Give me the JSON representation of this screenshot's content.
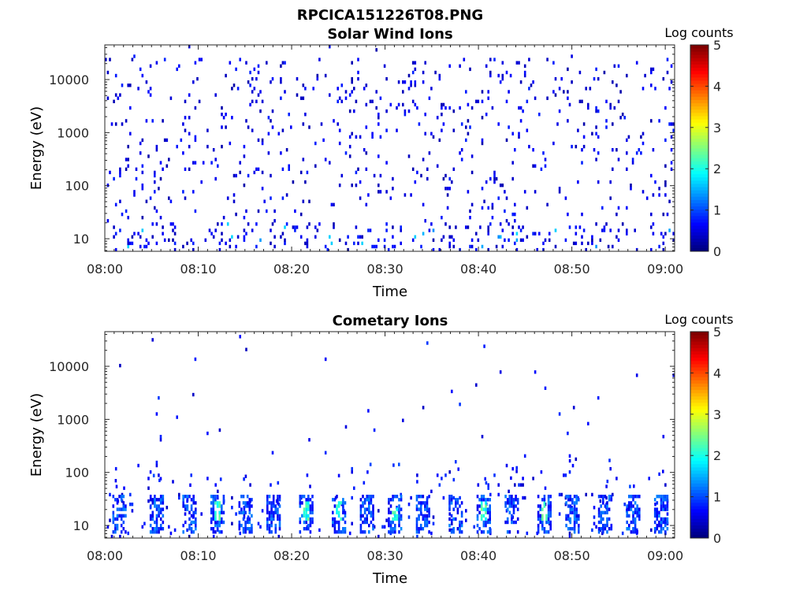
{
  "figure": {
    "title": "RPCICA151226T08.PNG"
  },
  "colors": {
    "axis": "#262626",
    "background": "#ffffff"
  },
  "chart_data": [
    {
      "type": "heatmap",
      "title": "Solar Wind Ions",
      "xlabel": "Time",
      "ylabel": "Energy (eV)",
      "x_ticks": [
        "08:00",
        "08:10",
        "08:20",
        "08:30",
        "08:40",
        "08:50",
        "09:00"
      ],
      "xlim_minutes": [
        0,
        61
      ],
      "y_ticks": [
        "10",
        "100",
        "1000",
        "10000"
      ],
      "ylim": [
        5.8,
        45000
      ],
      "y_scale": "log",
      "colorbar": {
        "label": "Log counts",
        "ticks": [
          "0",
          "1",
          "2",
          "3",
          "4",
          "5"
        ],
        "range": [
          0,
          5
        ],
        "colormap": "jet"
      },
      "description": "Sparse log-count pixels (mostly 0-1) scattered across 10 eV-20 keV for the whole hour; denser low-energy streaks below 20 eV with isolated values near 1.5 around 08:04, 08:25 and 08:41."
    },
    {
      "type": "heatmap",
      "title": "Cometary Ions",
      "xlabel": "Time",
      "ylabel": "Energy (eV)",
      "x_ticks": [
        "08:00",
        "08:10",
        "08:20",
        "08:30",
        "08:40",
        "08:50",
        "09:00"
      ],
      "xlim_minutes": [
        0,
        61
      ],
      "y_ticks": [
        "10",
        "100",
        "1000",
        "10000"
      ],
      "ylim": [
        5.8,
        45000
      ],
      "y_scale": "log",
      "colorbar": {
        "label": "Log counts",
        "ticks": [
          "0",
          "1",
          "2",
          "3",
          "4",
          "5"
        ],
        "range": [
          0,
          5
        ],
        "colormap": "jet"
      },
      "bursts_minutes": [
        1.5,
        5.5,
        9,
        12,
        15,
        18,
        21.5,
        25,
        28,
        31,
        34,
        37.5,
        40.5,
        43.5,
        47,
        50,
        53.5,
        56.5,
        59.5
      ],
      "description": "Periodic bursts of cometary ions between ~8 and 40 eV, peaking near log count 2-2.5 (cyan/green) at about 08:18, 08:25, 08:28 and 08:41; sparse counts up to ~10 keV."
    }
  ]
}
